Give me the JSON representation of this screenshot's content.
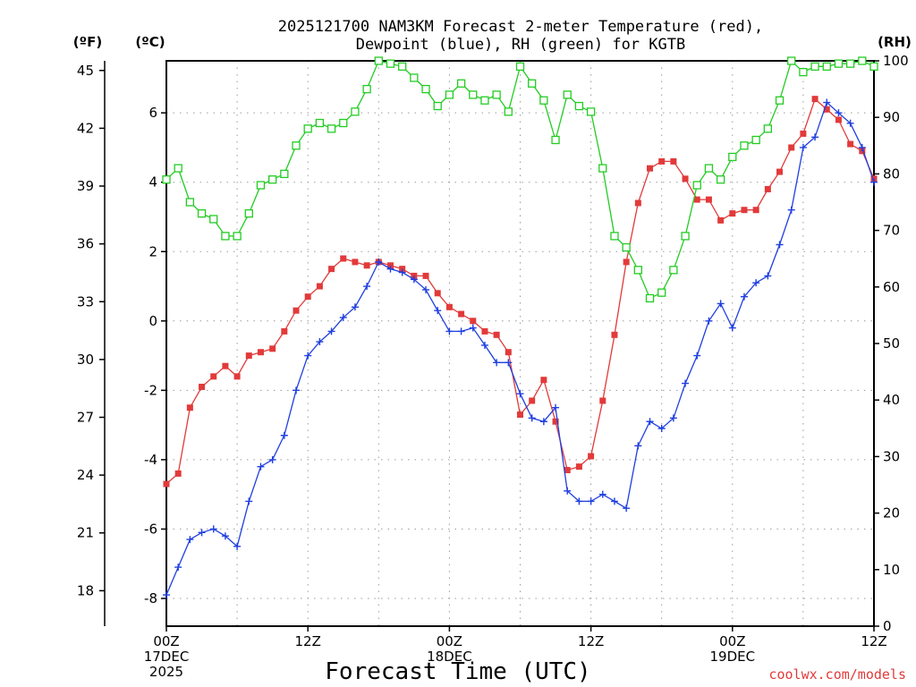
{
  "chart_data": {
    "type": "line",
    "title_line1": "2025121700 NAM3KM Forecast 2-meter Temperature (red),",
    "title_line2": "Dewpoint (blue), RH (green) for KGTB",
    "xlabel": "Forecast Time (UTC)",
    "credit": "coolwx.com/models",
    "axis_units": {
      "fahrenheit": "(ºF)",
      "celsius": "(ºC)",
      "rh": "(RH)"
    },
    "x_range_hours": [
      0,
      60
    ],
    "celsius_range": [
      -8.8,
      7.5
    ],
    "rh_range": [
      0,
      100
    ],
    "x_ticks": [
      {
        "hour": 0,
        "lines": [
          "00Z",
          "17DEC",
          "2025"
        ]
      },
      {
        "hour": 12,
        "lines": [
          "12Z"
        ]
      },
      {
        "hour": 24,
        "lines": [
          "00Z",
          "18DEC"
        ]
      },
      {
        "hour": 36,
        "lines": [
          "12Z"
        ]
      },
      {
        "hour": 48,
        "lines": [
          "00Z",
          "19DEC"
        ]
      },
      {
        "hour": 60,
        "lines": [
          "12Z"
        ]
      }
    ],
    "celsius_ticks": [
      "-8",
      "-6",
      "-4",
      "-2",
      "0",
      "2",
      "4",
      "6"
    ],
    "fahrenheit_ticks": [
      "18",
      "21",
      "24",
      "27",
      "30",
      "33",
      "36",
      "39",
      "42",
      "45"
    ],
    "rh_ticks": [
      "0",
      "10",
      "20",
      "30",
      "40",
      "50",
      "60",
      "70",
      "80",
      "90",
      "100"
    ],
    "x_hours": [
      0,
      1,
      2,
      3,
      4,
      5,
      6,
      7,
      8,
      9,
      10,
      11,
      12,
      13,
      14,
      15,
      16,
      17,
      18,
      19,
      20,
      21,
      22,
      23,
      24,
      25,
      26,
      27,
      28,
      29,
      30,
      31,
      32,
      33,
      34,
      35,
      36,
      37,
      38,
      39,
      40,
      41,
      42,
      43,
      44,
      45,
      46,
      47,
      48,
      49,
      50,
      51,
      52,
      53,
      54,
      55,
      56,
      57,
      58,
      59,
      60
    ],
    "series": [
      {
        "name": "2-meter Temperature",
        "unit": "C",
        "color": "#e23a3a",
        "marker": "filled-square",
        "values": [
          -4.7,
          -4.4,
          -2.5,
          -1.9,
          -1.6,
          -1.3,
          -1.6,
          -1.0,
          -0.9,
          -0.8,
          -0.3,
          0.3,
          0.7,
          1.0,
          1.5,
          1.8,
          1.7,
          1.6,
          1.7,
          1.6,
          1.5,
          1.3,
          1.3,
          0.8,
          0.4,
          0.2,
          0.0,
          -0.3,
          -0.4,
          -0.9,
          -2.7,
          -2.3,
          -1.7,
          -2.9,
          -4.3,
          -4.2,
          -3.9,
          -2.3,
          -0.4,
          1.7,
          3.4,
          4.4,
          4.6,
          4.6,
          4.1,
          3.5,
          3.5,
          2.9,
          3.1,
          3.2,
          3.2,
          3.8,
          4.3,
          5.0,
          5.4,
          6.4,
          6.1,
          5.8,
          5.1,
          4.9,
          4.1
        ]
      },
      {
        "name": "Dewpoint",
        "unit": "C",
        "color": "#1f3fe0",
        "marker": "plus",
        "values": [
          -7.9,
          -7.1,
          -6.3,
          -6.1,
          -6.0,
          -6.2,
          -6.5,
          -5.2,
          -4.2,
          -4.0,
          -3.3,
          -2.0,
          -1.0,
          -0.6,
          -0.3,
          0.1,
          0.4,
          1.0,
          1.7,
          1.5,
          1.4,
          1.2,
          0.9,
          0.3,
          -0.3,
          -0.3,
          -0.2,
          -0.7,
          -1.2,
          -1.2,
          -2.1,
          -2.8,
          -2.9,
          -2.5,
          -4.9,
          -5.2,
          -5.2,
          -5.0,
          -5.2,
          -5.4,
          -3.6,
          -2.9,
          -3.1,
          -2.8,
          -1.8,
          -1.0,
          0.0,
          0.5,
          -0.2,
          0.7,
          1.1,
          1.3,
          2.2,
          3.2,
          5.0,
          5.3,
          6.3,
          6.0,
          5.7,
          5.0,
          4.0
        ]
      },
      {
        "name": "RH",
        "unit": "%",
        "color": "#22cc22",
        "marker": "open-square",
        "values": [
          79,
          81,
          75,
          73,
          72,
          69,
          69,
          73,
          78,
          79,
          80,
          85,
          88,
          89,
          88,
          89,
          91,
          95,
          100,
          99.5,
          99,
          97,
          95,
          92,
          94,
          96,
          94,
          93,
          94,
          91,
          99,
          96,
          93,
          86,
          94,
          92,
          91,
          81,
          69,
          67,
          63,
          58,
          59,
          63,
          69,
          78,
          81,
          79,
          83,
          85,
          86,
          88,
          93,
          100,
          98,
          99,
          99,
          99.5,
          99.5,
          100,
          99
        ]
      }
    ]
  }
}
